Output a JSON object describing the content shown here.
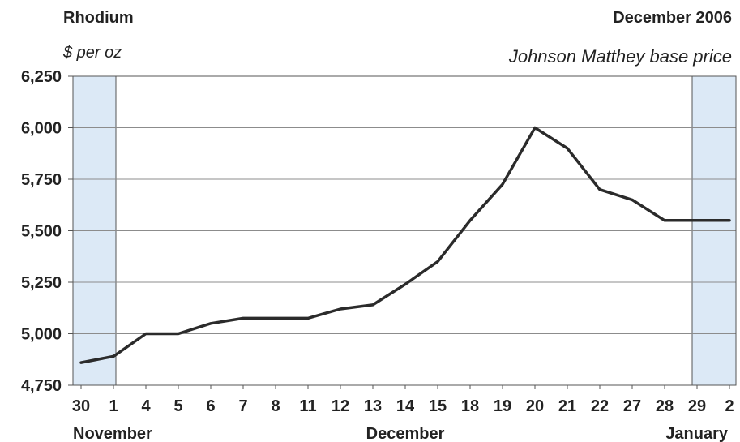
{
  "header": {
    "title": "Rhodium",
    "period": "December 2006",
    "unit": "$ per oz",
    "source": "Johnson Matthey base price"
  },
  "chart_data": {
    "type": "line",
    "title": "Rhodium",
    "ylabel": "$ per oz",
    "ylim": [
      4750,
      6250
    ],
    "yticks": [
      4750,
      5000,
      5250,
      5500,
      5750,
      6000,
      6250
    ],
    "grid": true,
    "categories": [
      "30",
      "1",
      "4",
      "5",
      "6",
      "7",
      "8",
      "11",
      "12",
      "13",
      "14",
      "15",
      "18",
      "19",
      "20",
      "21",
      "22",
      "27",
      "28",
      "29",
      "2"
    ],
    "month_labels": [
      {
        "label": "November",
        "at_index": 0
      },
      {
        "label": "December",
        "at_index": 10
      },
      {
        "label": "January",
        "at_index": 20
      }
    ],
    "shaded_ranges": [
      [
        0,
        1
      ],
      [
        19,
        20
      ]
    ],
    "series": [
      {
        "values": [
          4860,
          4890,
          5000,
          5000,
          5050,
          5075,
          5075,
          5075,
          5120,
          5140,
          5240,
          5350,
          5550,
          5725,
          6000,
          5900,
          5700,
          5650,
          5550,
          5550,
          5550
        ],
        "color": "#2b2b2b"
      }
    ],
    "shade_color": "#dce9f6",
    "grid_color": "#8c8c8c"
  }
}
